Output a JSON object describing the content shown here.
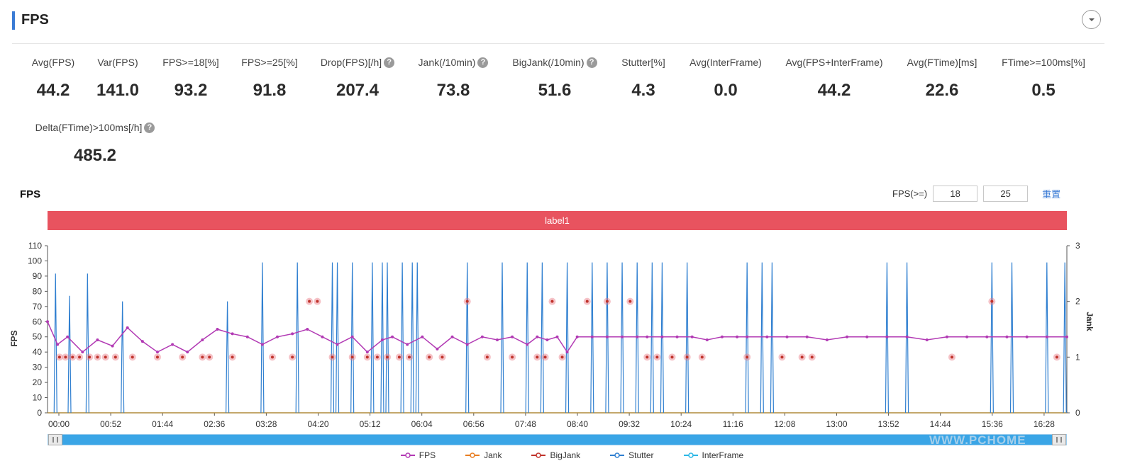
{
  "section": {
    "title": "FPS"
  },
  "metrics": [
    {
      "label": "Avg(FPS)",
      "value": "44.2",
      "help": false
    },
    {
      "label": "Var(FPS)",
      "value": "141.0",
      "help": false
    },
    {
      "label": "FPS>=18[%]",
      "value": "93.2",
      "help": false
    },
    {
      "label": "FPS>=25[%]",
      "value": "91.8",
      "help": false
    },
    {
      "label": "Drop(FPS)[/h]",
      "value": "207.4",
      "help": true
    },
    {
      "label": "Jank(/10min)",
      "value": "73.8",
      "help": true
    },
    {
      "label": "BigJank(/10min)",
      "value": "51.6",
      "help": true
    },
    {
      "label": "Stutter[%]",
      "value": "4.3",
      "help": false
    },
    {
      "label": "Avg(InterFrame)",
      "value": "0.0",
      "help": false
    },
    {
      "label": "Avg(FPS+InterFrame)",
      "value": "44.2",
      "help": false
    },
    {
      "label": "Avg(FTime)[ms]",
      "value": "22.6",
      "help": false
    },
    {
      "label": "FTime>=100ms[%]",
      "value": "0.5",
      "help": false
    },
    {
      "label": "Delta(FTime)>100ms[/h]",
      "value": "485.2",
      "help": true
    }
  ],
  "chart_panel": {
    "title": "FPS",
    "threshold_label": "FPS(>=)",
    "threshold_low": "18",
    "threshold_high": "25",
    "reset_label": "重置",
    "band_label": "label1",
    "help_glyph": "?",
    "watermark": "WWW.PCHOME"
  },
  "legend": [
    {
      "name": "FPS",
      "color": "#b23ab4"
    },
    {
      "name": "Jank",
      "color": "#e87e22"
    },
    {
      "name": "BigJank",
      "color": "#c0332b"
    },
    {
      "name": "Stutter",
      "color": "#2f7fd0"
    },
    {
      "name": "InterFrame",
      "color": "#2bb7e6"
    }
  ],
  "chart_data": {
    "type": "line",
    "ylabel": "FPS",
    "y2label": "Jank",
    "ylim": [
      0,
      110
    ],
    "y_ticks": [
      0,
      10,
      20,
      30,
      40,
      50,
      60,
      70,
      80,
      90,
      100,
      110
    ],
    "y2lim": [
      0,
      3
    ],
    "y2_ticks": [
      0,
      1,
      2,
      3
    ],
    "x_ticks": [
      "00:00",
      "00:52",
      "01:44",
      "02:36",
      "03:28",
      "04:20",
      "05:12",
      "06:04",
      "06:56",
      "07:48",
      "08:40",
      "09:32",
      "10:24",
      "11:16",
      "12:08",
      "13:00",
      "13:52",
      "14:44",
      "15:36",
      "16:28"
    ],
    "xlim_minutes": [
      0,
      1020
    ],
    "legend_position": "bottom",
    "series": [
      {
        "name": "FPS",
        "x_minutes": [
          0,
          10,
          20,
          35,
          50,
          65,
          80,
          95,
          110,
          125,
          140,
          155,
          170,
          185,
          200,
          215,
          230,
          245,
          260,
          275,
          290,
          305,
          320,
          335,
          345,
          360,
          375,
          390,
          405,
          420,
          435,
          450,
          465,
          480,
          490,
          500,
          510,
          520,
          530,
          545,
          560,
          575,
          590,
          600,
          615,
          630,
          645,
          660,
          675,
          690,
          700,
          720,
          740,
          760,
          780,
          800,
          820,
          840,
          860,
          880,
          900,
          920,
          940,
          960,
          980,
          1000,
          1020
        ],
        "values": [
          60,
          45,
          50,
          40,
          48,
          44,
          56,
          47,
          40,
          45,
          40,
          48,
          55,
          52,
          50,
          45,
          50,
          52,
          55,
          50,
          45,
          50,
          40,
          48,
          50,
          45,
          50,
          42,
          50,
          45,
          50,
          48,
          50,
          45,
          50,
          48,
          50,
          40,
          50,
          50,
          50,
          50,
          50,
          50,
          50,
          50,
          50,
          48,
          50,
          50,
          50,
          50,
          50,
          50,
          48,
          50,
          50,
          50,
          50,
          48,
          50,
          50,
          50,
          50,
          50,
          50,
          50
        ]
      },
      {
        "name": "Jank",
        "x_minutes": [
          12,
          18,
          25,
          32,
          42,
          50,
          58,
          68,
          85,
          110,
          135,
          155,
          162,
          185,
          225,
          245,
          262,
          270,
          285,
          305,
          320,
          330,
          340,
          352,
          362,
          382,
          395,
          420,
          440,
          465,
          490,
          498,
          505,
          515,
          540,
          560,
          583,
          600,
          610,
          625,
          640,
          655,
          700,
          735,
          755,
          765,
          905,
          945,
          1010
        ],
        "values": [
          1,
          1,
          1,
          1,
          1,
          1,
          1,
          1,
          1,
          1,
          1,
          1,
          1,
          1,
          1,
          1,
          2,
          2,
          1,
          1,
          1,
          1,
          1,
          1,
          1,
          1,
          1,
          2,
          1,
          1,
          1,
          1,
          2,
          1,
          2,
          2,
          2,
          1,
          1,
          1,
          1,
          1,
          1,
          1,
          1,
          1,
          1,
          2,
          1
        ]
      },
      {
        "name": "BigJank",
        "x_minutes": [],
        "values": []
      },
      {
        "name": "Stutter",
        "x_minutes": [
          8,
          22,
          40,
          75,
          180,
          215,
          250,
          285,
          290,
          305,
          325,
          335,
          340,
          355,
          365,
          370,
          420,
          455,
          480,
          495,
          520,
          545,
          560,
          575,
          590,
          605,
          615,
          640,
          700,
          715,
          725,
          840,
          860,
          945,
          965,
          1000,
          1018
        ],
        "values": [
          2.5,
          2.1,
          2.5,
          2.0,
          2.0,
          2.7,
          2.7,
          2.7,
          2.7,
          2.7,
          2.7,
          2.7,
          2.7,
          2.7,
          2.7,
          2.7,
          2.7,
          2.7,
          2.7,
          2.7,
          2.7,
          2.7,
          2.7,
          2.7,
          2.7,
          2.7,
          2.7,
          2.7,
          2.7,
          2.7,
          2.7,
          2.7,
          2.7,
          2.7,
          2.7,
          2.7,
          2.7
        ]
      },
      {
        "name": "InterFrame",
        "x_minutes": [
          0,
          1020
        ],
        "values": [
          0,
          0
        ]
      }
    ]
  }
}
